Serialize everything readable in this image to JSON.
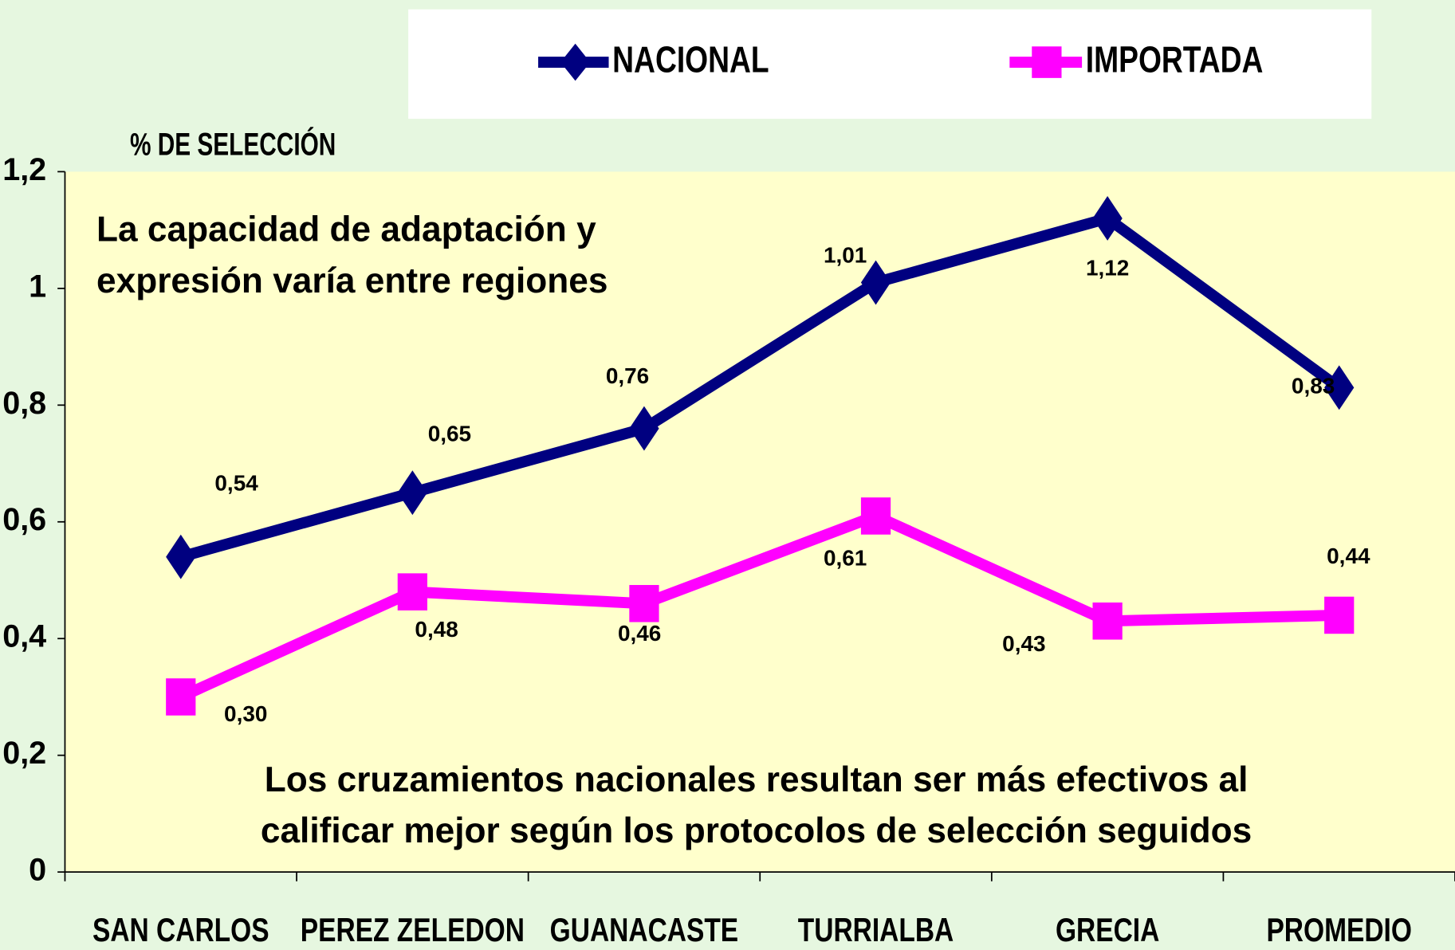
{
  "chart_data": {
    "type": "line",
    "y_label": "% DE SELECCIÓN",
    "categories": [
      "SAN CARLOS",
      "PEREZ ZELEDON",
      "GUANACASTE",
      "TURRIALBA",
      "GRECIA",
      "PROMEDIO"
    ],
    "series": [
      {
        "name": "NACIONAL",
        "color": "#000080",
        "marker": "diamond",
        "values": [
          0.54,
          0.65,
          0.76,
          1.01,
          1.12,
          0.83
        ],
        "value_labels": [
          "0,54",
          "0,65",
          "0,76",
          "1,01",
          "1,12",
          "0,83"
        ]
      },
      {
        "name": "IMPORTADA",
        "color": "#ff00ff",
        "marker": "square",
        "values": [
          0.3,
          0.48,
          0.46,
          0.61,
          0.43,
          0.44
        ],
        "value_labels": [
          "0,30",
          "0,48",
          "0,46",
          "0,61",
          "0,43",
          "0,44"
        ]
      }
    ],
    "ylim": [
      0,
      1.2
    ],
    "yticks": [
      0,
      {
        "value": 0.2,
        "label": "0,2"
      },
      {
        "value": 0.4,
        "label": "0,4"
      },
      {
        "value": 0.6,
        "label": "0,6"
      },
      {
        "value": 0.8,
        "label": "0,8"
      },
      1,
      {
        "value": 1.2,
        "label": "1,2"
      }
    ],
    "annotations": [
      [
        "La capacidad de adaptación y",
        "expresión varía entre regiones"
      ],
      [
        "Los cruzamientos nacionales resultan ser más efectivos al",
        "calificar mejor según los protocolos de selección seguidos"
      ]
    ]
  }
}
